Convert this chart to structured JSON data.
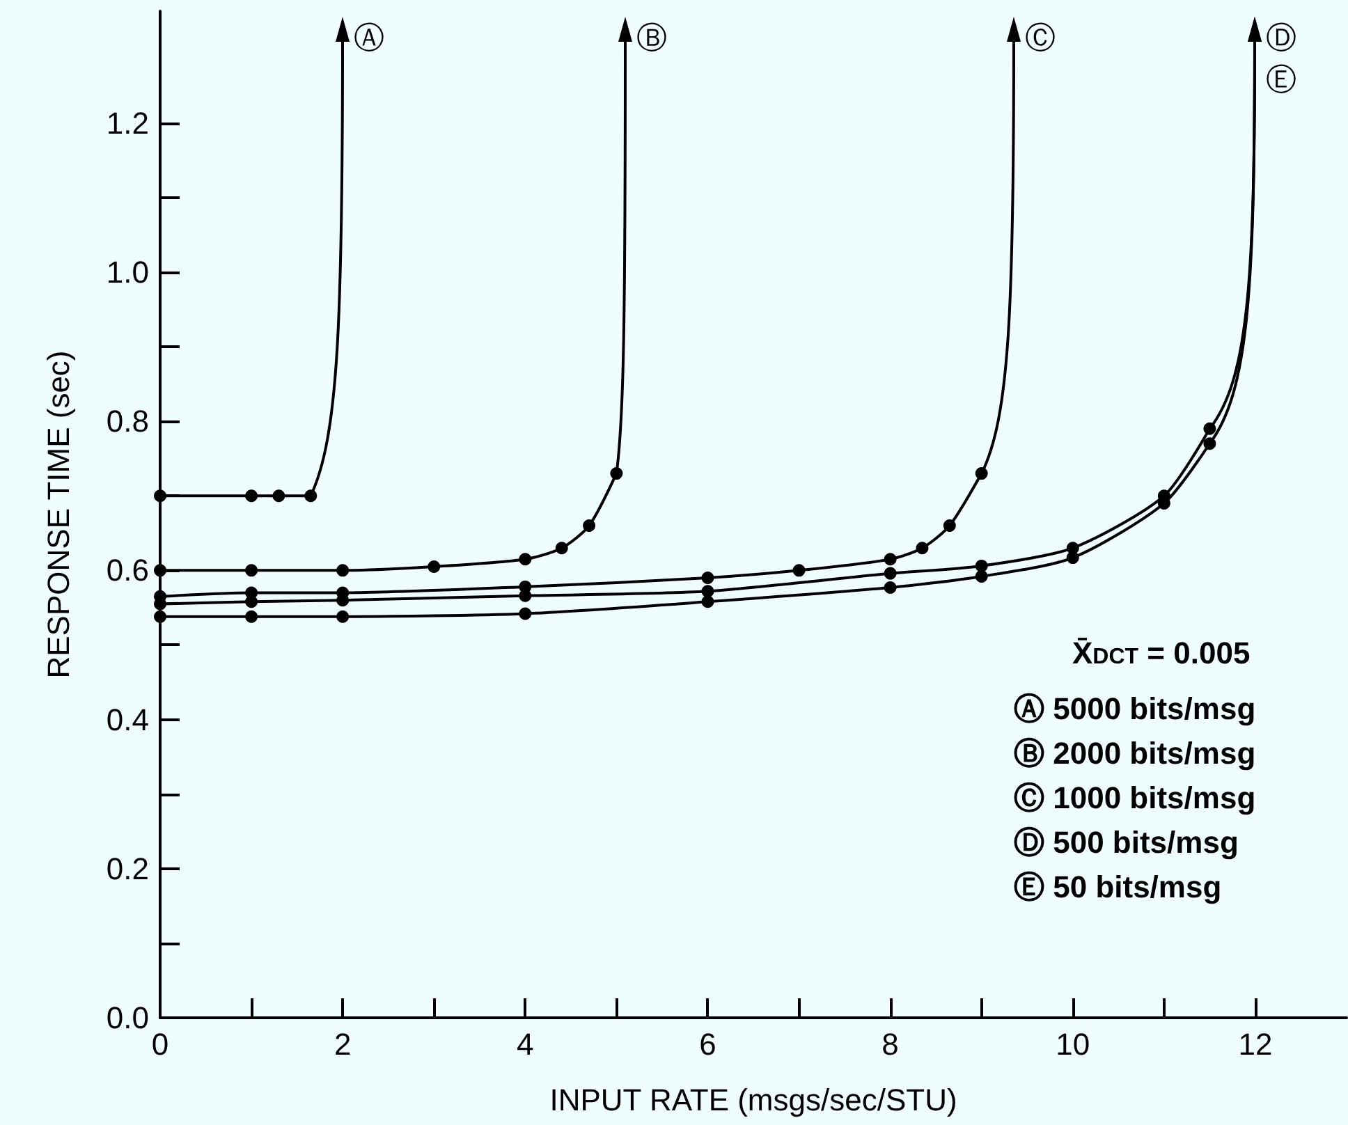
{
  "chart_data": {
    "type": "line",
    "xlabel": "INPUT RATE (msgs/sec/STU)",
    "ylabel": "RESPONSE TIME (sec)",
    "xlim": [
      0,
      13
    ],
    "ylim": [
      0,
      1.35
    ],
    "xticks": [
      0,
      {
        "value": 1,
        "label": null
      },
      2,
      {
        "value": 3,
        "label": null
      },
      4,
      {
        "value": 5,
        "label": null
      },
      6,
      {
        "value": 7,
        "label": null
      },
      8,
      {
        "value": 9,
        "label": null
      },
      10,
      {
        "value": 11,
        "label": null
      },
      12
    ],
    "yticks": [
      {
        "value": 0,
        "label": "0.0"
      },
      {
        "value": 0.1,
        "label": null
      },
      0.2,
      {
        "value": 0.3,
        "label": null
      },
      0.4,
      {
        "value": 0.5,
        "label": null
      },
      0.6,
      {
        "value": 0.7,
        "label": null
      },
      0.8,
      {
        "value": 0.9,
        "label": null
      },
      {
        "value": 1,
        "label": "1.0"
      },
      {
        "value": 1.1,
        "label": null
      },
      1.2
    ],
    "grid": false,
    "line_style": "solid",
    "marker": "circle",
    "series": [
      {
        "color": "#000000",
        "x": [
          0,
          1,
          1.3,
          1.65
        ],
        "values": [
          0.7,
          0.7,
          0.7,
          0.7
        ]
      },
      {
        "color": "#000000",
        "x": [
          0,
          1,
          2,
          3,
          4,
          4.4,
          4.7,
          5
        ],
        "values": [
          0.6,
          0.6,
          0.6,
          0.605,
          0.615,
          0.63,
          0.66,
          0.73
        ]
      },
      {
        "color": "#000000",
        "x": [
          0,
          1,
          2,
          4,
          6,
          7,
          8,
          8.35,
          8.65,
          9
        ],
        "values": [
          0.565,
          0.57,
          0.57,
          0.578,
          0.59,
          0.6,
          0.615,
          0.63,
          0.66,
          0.73
        ]
      },
      {
        "color": "#000000",
        "x": [
          0,
          1,
          2,
          4,
          6,
          8,
          9,
          10,
          11,
          11.5
        ],
        "values": [
          0.555,
          0.558,
          0.56,
          0.566,
          0.572,
          0.596,
          0.606,
          0.63,
          0.7,
          0.79
        ]
      },
      {
        "color": "#000000",
        "x": [
          0,
          1,
          2,
          4,
          6,
          8,
          9,
          10,
          11,
          11.5
        ],
        "values": [
          0.538,
          0.538,
          0.538,
          0.542,
          0.558,
          0.577,
          0.592,
          0.617,
          0.69,
          0.77
        ]
      }
    ],
    "annotations": [
      {
        "text": "Ⓐ",
        "x": 1.65,
        "y": 0.7
      },
      {
        "text": "Ⓑ",
        "x": 5,
        "y": 0.73
      },
      {
        "text": "Ⓒ",
        "x": 9,
        "y": 0.73
      },
      {
        "text": "Ⓓ",
        "x": 11.5,
        "y": 0.79
      },
      {
        "text": "Ⓔ",
        "x": 11.5,
        "y": 0.77
      },
      "X̄$_{DCT}$ = 0.005",
      "Ⓐ 5000 bits/msg",
      "Ⓑ 2000 bits/msg",
      "Ⓒ 1000 bits/msg",
      "Ⓓ 500 bits/msg",
      "Ⓔ 50 bits/msg"
    ]
  }
}
